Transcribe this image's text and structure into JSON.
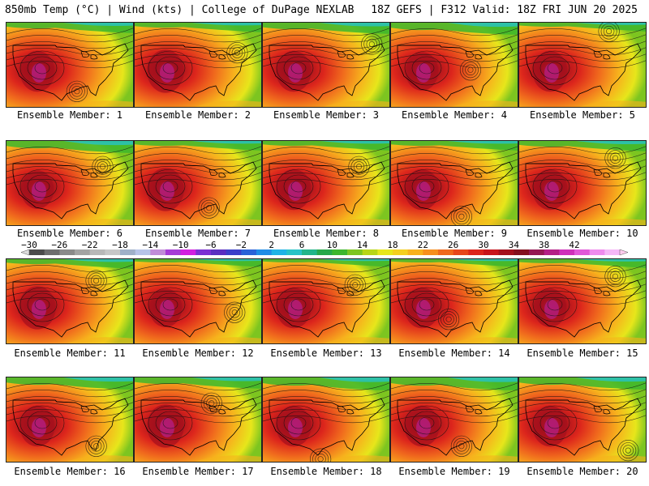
{
  "header": {
    "title_left": "850mb Temp (°C) | Wind (kts) | College of DuPage NEXLAB",
    "title_right": "18Z GEFS | F312 Valid: 18Z FRI JUN 20 2025"
  },
  "members": [
    {
      "label": "Ensemble Member: 1",
      "hot": 0.9,
      "cool": 0.35,
      "low": [
        0.55,
        0.8
      ]
    },
    {
      "label": "Ensemble Member: 2",
      "hot": 0.95,
      "cool": 0.3,
      "low": [
        0.8,
        0.35
      ]
    },
    {
      "label": "Ensemble Member: 3",
      "hot": 0.9,
      "cool": 0.4,
      "low": [
        0.85,
        0.25
      ]
    },
    {
      "label": "Ensemble Member: 4",
      "hot": 0.85,
      "cool": 0.45,
      "low": [
        0.62,
        0.55
      ]
    },
    {
      "label": "Ensemble Member: 5",
      "hot": 0.9,
      "cool": 0.25,
      "low": [
        0.7,
        0.1
      ]
    },
    {
      "label": "Ensemble Member: 6",
      "hot": 0.85,
      "cool": 0.45,
      "low": [
        0.75,
        0.3
      ]
    },
    {
      "label": "Ensemble Member: 7",
      "hot": 0.95,
      "cool": 0.3,
      "low": [
        0.58,
        0.78
      ]
    },
    {
      "label": "Ensemble Member: 8",
      "hot": 0.9,
      "cool": 0.3,
      "low": [
        0.75,
        0.3
      ]
    },
    {
      "label": "Ensemble Member: 9",
      "hot": 0.9,
      "cool": 0.3,
      "low": [
        0.55,
        0.88
      ]
    },
    {
      "label": "Ensemble Member: 10",
      "hot": 0.9,
      "cool": 0.35,
      "low": [
        0.75,
        0.2
      ]
    },
    {
      "label": "Ensemble Member: 11",
      "hot": 0.95,
      "cool": 0.3,
      "low": [
        0.7,
        0.25
      ]
    },
    {
      "label": "Ensemble Member: 12",
      "hot": 0.85,
      "cool": 0.2,
      "low": [
        0.78,
        0.62
      ]
    },
    {
      "label": "Ensemble Member: 13",
      "hot": 0.9,
      "cool": 0.2,
      "low": [
        0.72,
        0.3
      ]
    },
    {
      "label": "Ensemble Member: 14",
      "hot": 0.9,
      "cool": 0.2,
      "low": [
        0.45,
        0.7
      ]
    },
    {
      "label": "Ensemble Member: 15",
      "hot": 0.85,
      "cool": 0.25,
      "low": [
        0.75,
        0.2
      ]
    },
    {
      "label": "Ensemble Member: 16",
      "hot": 0.9,
      "cool": 0.45,
      "low": [
        0.7,
        0.8
      ]
    },
    {
      "label": "Ensemble Member: 17",
      "hot": 0.95,
      "cool": 0.4,
      "low": [
        0.6,
        0.3
      ]
    },
    {
      "label": "Ensemble Member: 18",
      "hot": 0.9,
      "cool": 0.5,
      "low": [
        0.45,
        0.95
      ]
    },
    {
      "label": "Ensemble Member: 19",
      "hot": 0.9,
      "cool": 0.5,
      "low": [
        0.55,
        0.8
      ]
    },
    {
      "label": "Ensemble Member: 20",
      "hot": 0.9,
      "cool": 0.45,
      "low": [
        0.85,
        0.85
      ]
    }
  ],
  "colorbar": {
    "labels": [
      "−30",
      "−26",
      "−22",
      "−18",
      "−14",
      "−10",
      "−6",
      "−2",
      "2",
      "6",
      "10",
      "14",
      "18",
      "22",
      "26",
      "30",
      "34",
      "38",
      "42"
    ],
    "colors": [
      "#4b4b4b",
      "#6e6e6e",
      "#8a8a8a",
      "#a3a3a3",
      "#b8b8b8",
      "#c7c7c7",
      "#9fb0c8",
      "#b7c4e8",
      "#c18cd8",
      "#a63bd6",
      "#d21fe0",
      "#7b2fd3",
      "#5a2ec1",
      "#3b3fc9",
      "#2a62d8",
      "#1f8ce6",
      "#1fb3e6",
      "#27c3c7",
      "#22b58a",
      "#27a84a",
      "#3db62d",
      "#7dc520",
      "#b8d516",
      "#e7e61b",
      "#f4cf1e",
      "#f7b11d",
      "#f78f1d",
      "#f0691d",
      "#e7461c",
      "#dc251c",
      "#c8141b",
      "#a4101c",
      "#84101e",
      "#951853",
      "#b41f86",
      "#cf2fba",
      "#e157d8",
      "#ef8bee",
      "#f5b7f7"
    ]
  }
}
